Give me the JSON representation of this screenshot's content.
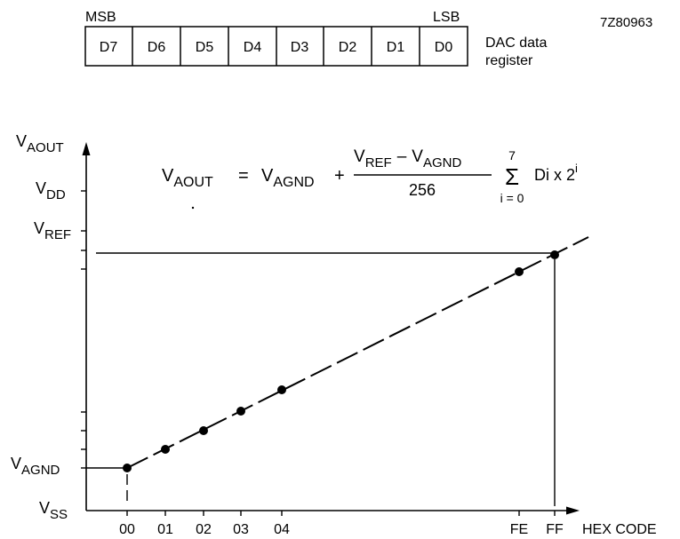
{
  "figure_id": "7Z80963",
  "register": {
    "msb": "MSB",
    "lsb": "LSB",
    "bits": [
      "D7",
      "D6",
      "D5",
      "D4",
      "D3",
      "D2",
      "D1",
      "D0"
    ],
    "caption_line1": "DAC data",
    "caption_line2": "register"
  },
  "y_axis": {
    "vaout": {
      "main": "V",
      "sub": "AOUT"
    },
    "vdd": {
      "main": "V",
      "sub": "DD"
    },
    "vref": {
      "main": "V",
      "sub": "REF"
    },
    "vagnd": {
      "main": "V",
      "sub": "AGND"
    },
    "vss": {
      "main": "V",
      "sub": "SS"
    }
  },
  "x_axis": {
    "ticks": [
      "00",
      "01",
      "02",
      "03",
      "04",
      "FE",
      "FF"
    ],
    "label": "HEX CODE"
  },
  "formula": {
    "lhs_v": "V",
    "lhs_sub": "AOUT",
    "eq": "=",
    "t1_v": "V",
    "t1_sub": "AGND",
    "plus": "+",
    "num_v1": "V",
    "num_sub1": "REF",
    "minus": "–",
    "num_v2": "V",
    "num_sub2": "AGND",
    "den": "256",
    "sum_top": "7",
    "sum_sym": "Σ",
    "sum_bottom": "i = 0",
    "tail": "Di x 2",
    "tail_sup": "i"
  }
}
